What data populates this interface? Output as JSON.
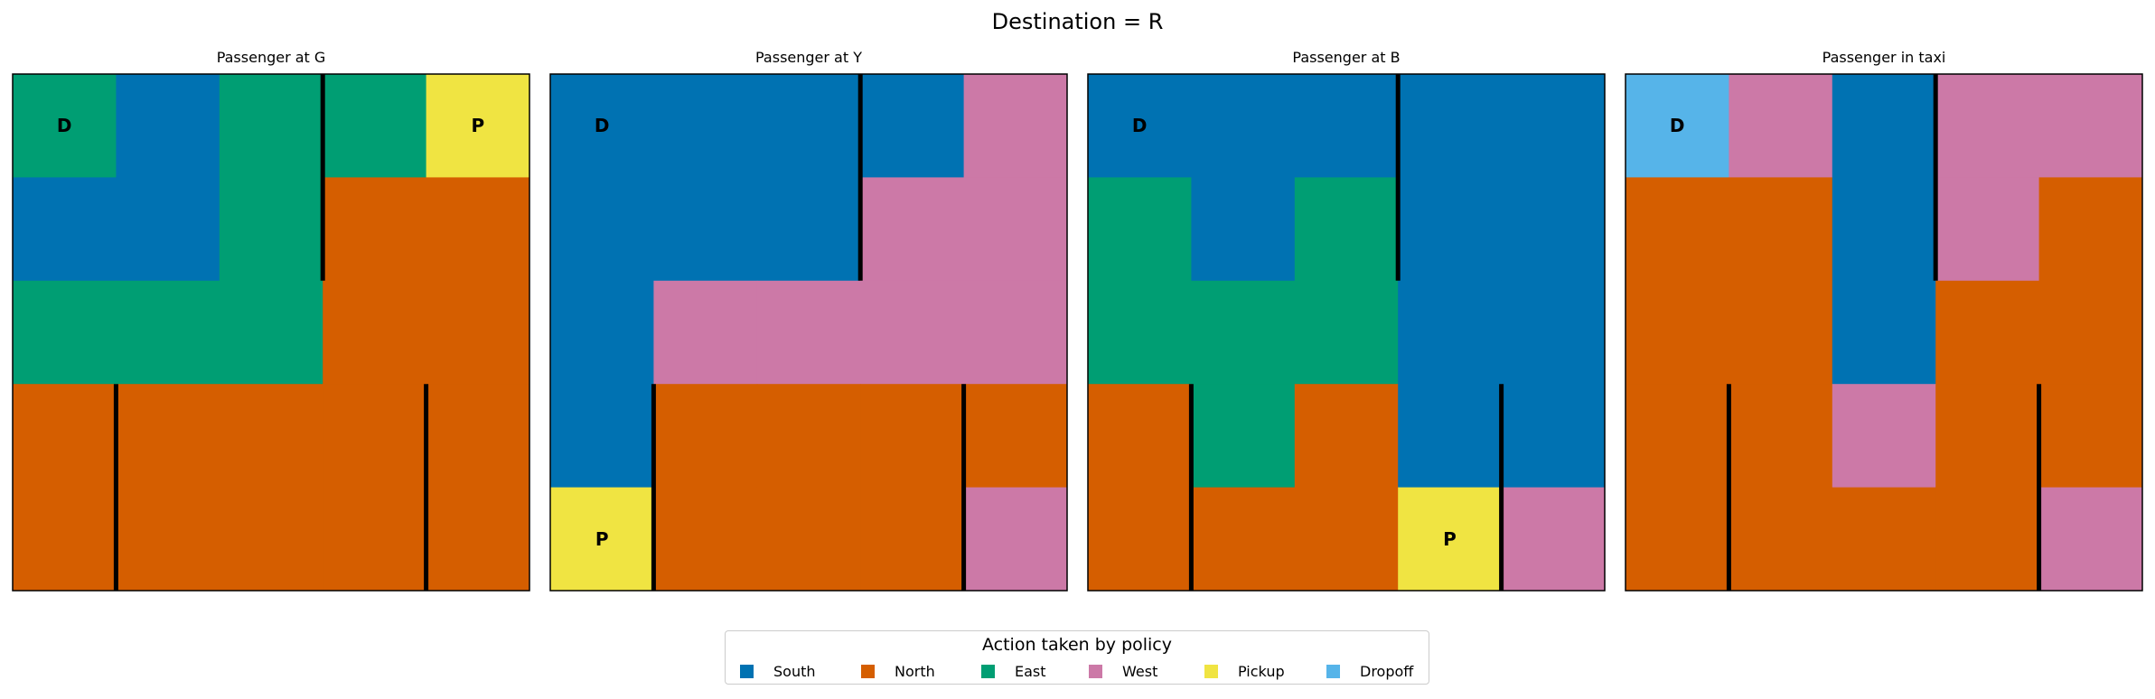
{
  "title": "Destination = R",
  "legend": {
    "title": "Action taken by policy",
    "items": [
      {
        "label": "South",
        "color": "#0072B2"
      },
      {
        "label": "North",
        "color": "#D55E00"
      },
      {
        "label": "East",
        "color": "#009E73"
      },
      {
        "label": "West",
        "color": "#CC79A7"
      },
      {
        "label": "Pickup",
        "color": "#F0E442"
      },
      {
        "label": "Dropoff",
        "color": "#56B4E9"
      }
    ]
  },
  "chart_data": [
    {
      "type": "heatmap",
      "title": "Passenger at G",
      "grid": [
        [
          "East",
          "South",
          "East",
          "East",
          "Pickup"
        ],
        [
          "South",
          "South",
          "East",
          "North",
          "North"
        ],
        [
          "East",
          "East",
          "East",
          "North",
          "North"
        ],
        [
          "North",
          "North",
          "North",
          "North",
          "North"
        ],
        [
          "North",
          "North",
          "North",
          "North",
          "North"
        ]
      ],
      "markers": [
        {
          "row": 0,
          "col": 0,
          "text": "D"
        },
        {
          "row": 0,
          "col": 4,
          "text": "P"
        }
      ]
    },
    {
      "type": "heatmap",
      "title": "Passenger at Y",
      "grid": [
        [
          "South",
          "South",
          "South",
          "South",
          "West"
        ],
        [
          "South",
          "South",
          "South",
          "West",
          "West"
        ],
        [
          "South",
          "West",
          "West",
          "West",
          "West"
        ],
        [
          "South",
          "North",
          "North",
          "North",
          "North"
        ],
        [
          "Pickup",
          "North",
          "North",
          "North",
          "West"
        ]
      ],
      "markers": [
        {
          "row": 0,
          "col": 0,
          "text": "D"
        },
        {
          "row": 4,
          "col": 0,
          "text": "P"
        }
      ]
    },
    {
      "type": "heatmap",
      "title": "Passenger at B",
      "grid": [
        [
          "South",
          "South",
          "South",
          "South",
          "South"
        ],
        [
          "East",
          "South",
          "East",
          "South",
          "South"
        ],
        [
          "East",
          "East",
          "East",
          "South",
          "South"
        ],
        [
          "North",
          "East",
          "North",
          "South",
          "South"
        ],
        [
          "North",
          "North",
          "North",
          "Pickup",
          "West"
        ]
      ],
      "markers": [
        {
          "row": 0,
          "col": 0,
          "text": "D"
        },
        {
          "row": 4,
          "col": 3,
          "text": "P"
        }
      ]
    },
    {
      "type": "heatmap",
      "title": "Passenger in taxi",
      "grid": [
        [
          "Dropoff",
          "West",
          "South",
          "West",
          "West"
        ],
        [
          "North",
          "North",
          "South",
          "West",
          "North"
        ],
        [
          "North",
          "North",
          "South",
          "North",
          "North"
        ],
        [
          "North",
          "North",
          "West",
          "North",
          "North"
        ],
        [
          "North",
          "North",
          "North",
          "North",
          "West"
        ]
      ],
      "markers": [
        {
          "row": 0,
          "col": 0,
          "text": "D"
        }
      ]
    }
  ]
}
